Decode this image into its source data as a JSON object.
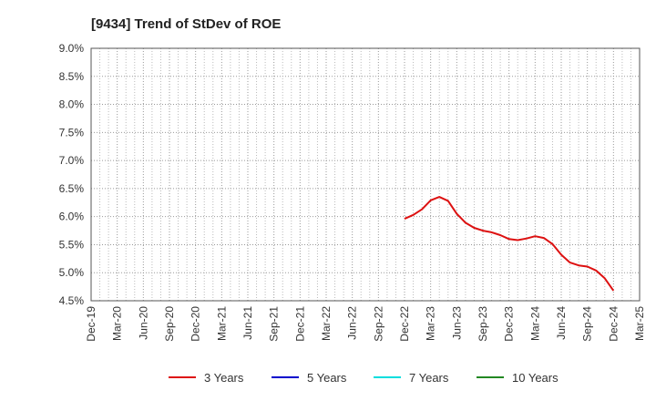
{
  "chart_data": {
    "type": "line",
    "title": "[9434]  Trend of StDev of ROE",
    "xlabel": "",
    "ylabel": "",
    "x_ticks": [
      "Dec-19",
      "Mar-20",
      "Jun-20",
      "Sep-20",
      "Dec-20",
      "Mar-21",
      "Jun-21",
      "Sep-21",
      "Dec-21",
      "Mar-22",
      "Jun-22",
      "Sep-22",
      "Dec-22",
      "Mar-23",
      "Jun-23",
      "Sep-23",
      "Dec-23",
      "Mar-24",
      "Jun-24",
      "Sep-24",
      "Dec-24",
      "Mar-25"
    ],
    "y_ticks": [
      "9.0%",
      "8.5%",
      "8.0%",
      "7.5%",
      "7.0%",
      "6.5%",
      "6.0%",
      "5.5%",
      "5.0%",
      "4.5%"
    ],
    "ylim": [
      4.5,
      9.0
    ],
    "grid": true,
    "legend_position": "bottom",
    "series": [
      {
        "name": "3 Years",
        "color": "#dd1111",
        "x": [
          "Dec-22",
          "Jan-23",
          "Feb-23",
          "Mar-23",
          "Apr-23",
          "May-23",
          "Jun-23",
          "Jul-23",
          "Aug-23",
          "Sep-23",
          "Oct-23",
          "Nov-23",
          "Dec-23",
          "Jan-24",
          "Feb-24",
          "Mar-24",
          "Apr-24",
          "May-24",
          "Jun-24",
          "Jul-24",
          "Aug-24",
          "Sep-24",
          "Oct-24",
          "Nov-24",
          "Dec-24"
        ],
        "values": [
          5.96,
          6.03,
          6.13,
          6.29,
          6.35,
          6.28,
          6.05,
          5.89,
          5.8,
          5.75,
          5.72,
          5.67,
          5.6,
          5.58,
          5.61,
          5.65,
          5.62,
          5.51,
          5.32,
          5.18,
          5.13,
          5.11,
          5.04,
          4.9,
          4.68
        ]
      },
      {
        "name": "5 Years",
        "color": "#0000cc",
        "x": [],
        "values": []
      },
      {
        "name": "7 Years",
        "color": "#00dddd",
        "x": [],
        "values": []
      },
      {
        "name": "10 Years",
        "color": "#228822",
        "x": [],
        "values": []
      }
    ]
  }
}
